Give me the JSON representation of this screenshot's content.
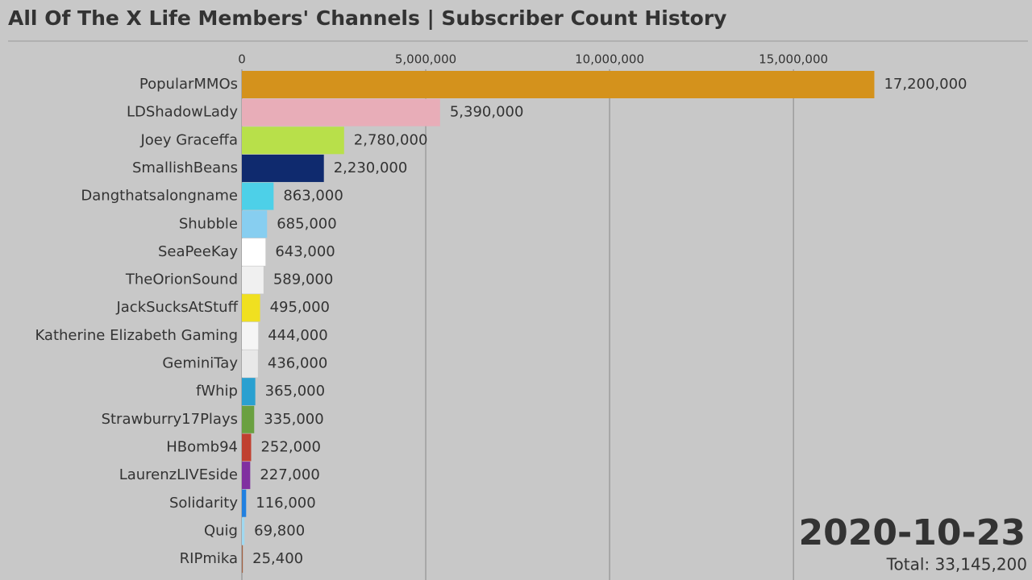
{
  "chart_data": {
    "type": "bar",
    "orientation": "horizontal",
    "title": "All Of The X Life Members' Channels | Subscriber Count History",
    "categories": [
      "PopularMMOs",
      "LDShadowLady",
      "Joey Graceffa",
      "SmallishBeans",
      "Dangthatsalongname",
      "Shubble",
      "SeaPeeKay",
      "TheOrionSound",
      "JackSucksAtStuff",
      "Katherine Elizabeth Gaming",
      "GeminiTay",
      "fWhip",
      "Strawburry17Plays",
      "HBomb94",
      "LaurenzLIVEside",
      "Solidarity",
      "Quig",
      "RIPmika"
    ],
    "values": [
      17200000,
      5390000,
      2780000,
      2230000,
      863000,
      685000,
      643000,
      589000,
      495000,
      444000,
      436000,
      365000,
      335000,
      252000,
      227000,
      116000,
      69800,
      25400
    ],
    "value_labels": [
      "17,200,000",
      "5,390,000",
      "2,780,000",
      "2,230,000",
      "863,000",
      "685,000",
      "643,000",
      "589,000",
      "495,000",
      "444,000",
      "436,000",
      "365,000",
      "335,000",
      "252,000",
      "227,000",
      "116,000",
      "69,800",
      "25,400"
    ],
    "colors": [
      "#d4921c",
      "#e8adb8",
      "#b8e04a",
      "#0f2a6e",
      "#4dd0e8",
      "#87cef0",
      "#ffffff",
      "#f0f0f0",
      "#f0e020",
      "#f5f5f5",
      "#e8e8e8",
      "#2aa0d0",
      "#6aa040",
      "#c04030",
      "#8030a0",
      "#2080e0",
      "#a0d8f0",
      "#a06040"
    ],
    "xlim": [
      0,
      21400000
    ],
    "xticks": [
      0,
      {
        "value": 5000000,
        "label": "5,000,000"
      },
      {
        "value": 10000000,
        "label": "10,000,000"
      },
      {
        "value": 15000000,
        "label": "15,000,000"
      }
    ],
    "grid": true,
    "date": "2020-10-23",
    "total": "Total: 33,145,200"
  }
}
